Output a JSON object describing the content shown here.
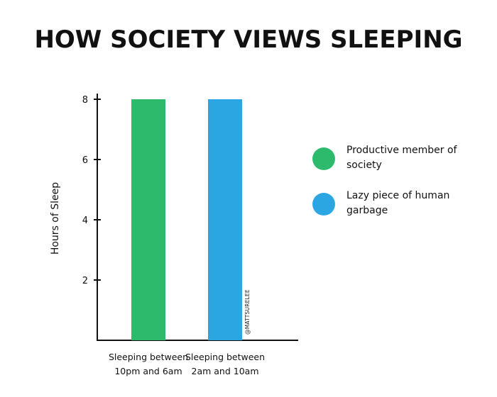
{
  "title": "HOW SOCIETY VIEWS SLEEPING",
  "watermark": "@MATTSURELEE",
  "colors": {
    "series_1": "#2dba6d",
    "series_2": "#2ba6e3",
    "axis": "#111111"
  },
  "legend": [
    {
      "label": "Productive member of society",
      "color": "#2dba6d"
    },
    {
      "label": "Lazy piece of human garbage",
      "color": "#2ba6e3"
    }
  ],
  "chart_data": {
    "type": "bar",
    "ylabel": "Hours of Sleep",
    "ylim": [
      0,
      8.5
    ],
    "yticks": [
      2,
      4,
      6,
      8
    ],
    "grid": false,
    "legend_position": "right",
    "categories": [
      [
        "Sleeping between",
        "10pm and 6am"
      ],
      [
        "Sleeping between",
        "2am and 10am"
      ]
    ],
    "values": [
      8,
      8
    ]
  }
}
